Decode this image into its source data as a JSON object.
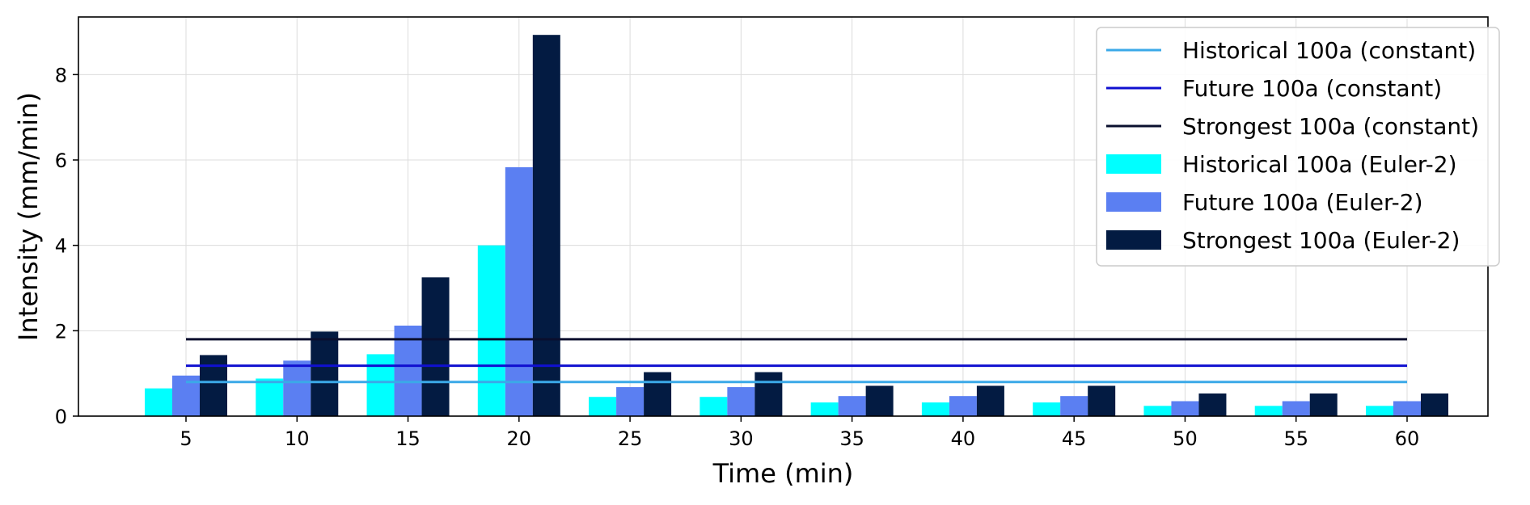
{
  "chart_data": {
    "type": "bar",
    "title": "",
    "xlabel": "Time (min)",
    "ylabel": "Intensity (mm/min)",
    "categories": [
      "5",
      "10",
      "15",
      "20",
      "25",
      "30",
      "35",
      "40",
      "45",
      "50",
      "55",
      "60"
    ],
    "ylim": [
      0,
      9.35
    ],
    "yticks": [
      "0",
      "2",
      "4",
      "6",
      "8"
    ],
    "grid": true,
    "legend_position": "top-right",
    "bar_series": [
      {
        "name": "Historical 100a (Euler-2)",
        "color": "#00ffff",
        "values": [
          0.65,
          0.88,
          1.45,
          4.0,
          0.45,
          0.45,
          0.32,
          0.32,
          0.32,
          0.24,
          0.24,
          0.24
        ]
      },
      {
        "name": "Future 100a (Euler-2)",
        "color": "#5b7ff2",
        "values": [
          0.95,
          1.3,
          2.12,
          5.83,
          0.68,
          0.68,
          0.47,
          0.47,
          0.47,
          0.35,
          0.35,
          0.35
        ]
      },
      {
        "name": "Strongest 100a (Euler-2)",
        "color": "#031b42",
        "values": [
          1.43,
          1.98,
          3.25,
          8.93,
          1.03,
          1.03,
          0.71,
          0.71,
          0.71,
          0.53,
          0.53,
          0.53
        ]
      }
    ],
    "line_series": [
      {
        "name": "Historical 100a (constant)",
        "color": "#3ba9e8",
        "value": 0.8,
        "x_range": [
          "5",
          "60"
        ]
      },
      {
        "name": "Future 100a (constant)",
        "color": "#1010d0",
        "value": 1.18,
        "x_range": [
          "5",
          "60"
        ]
      },
      {
        "name": "Strongest 100a (constant)",
        "color": "#0a0f2e",
        "value": 1.8,
        "x_range": [
          "5",
          "60"
        ]
      }
    ]
  }
}
